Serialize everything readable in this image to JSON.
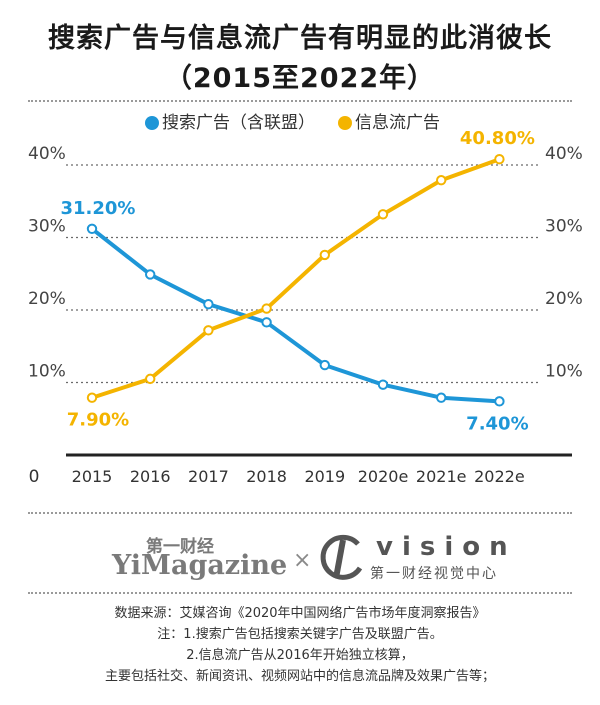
{
  "header": {
    "title_line1": "搜索广告与信息流广告有明显的此消彼长",
    "title_line2": "（2015至2022年）"
  },
  "chart_data": {
    "type": "line",
    "x": [
      "2015",
      "2016",
      "2017",
      "2018",
      "2019",
      "2020e",
      "2021e",
      "2022e"
    ],
    "y_ticks": [
      "0",
      "10%",
      "20%",
      "30%",
      "40%"
    ],
    "ylim": [
      0,
      44
    ],
    "grid": true,
    "legend_position": "top",
    "series": [
      {
        "name": "搜索广告（含联盟）",
        "color": "#1e96d7",
        "values": [
          31.2,
          24.9,
          20.8,
          18.3,
          12.4,
          9.7,
          7.9,
          7.4
        ]
      },
      {
        "name": "信息流广告",
        "color": "#f4b400",
        "values": [
          7.9,
          10.5,
          17.2,
          20.2,
          27.6,
          33.2,
          37.9,
          40.8
        ]
      }
    ],
    "annotations": [
      {
        "series": 0,
        "index": 0,
        "text": "31.20%",
        "place": "above"
      },
      {
        "series": 0,
        "index": 7,
        "text": "7.40%",
        "place": "below"
      },
      {
        "series": 1,
        "index": 0,
        "text": "7.90%",
        "place": "below"
      },
      {
        "series": 1,
        "index": 7,
        "text": "40.80%",
        "place": "above"
      }
    ]
  },
  "logos": {
    "yimagazine_cn": "第一财经",
    "yimagazine_en": "YiMagazine",
    "separator": "×",
    "vision_word": "vision",
    "vision_cn": "第一财经视觉中心"
  },
  "notes": {
    "source": "数据来源：艾媒咨询《2020年中国网络广告市场年度洞察报告》",
    "note1": "注：1.搜索广告包括搜索关键字广告及联盟广告。",
    "note2": "2.信息流广告从2016年开始独立核算，",
    "note3": "主要包括社交、新闻资讯、视频网站中的信息流品牌及效果广告等；"
  }
}
